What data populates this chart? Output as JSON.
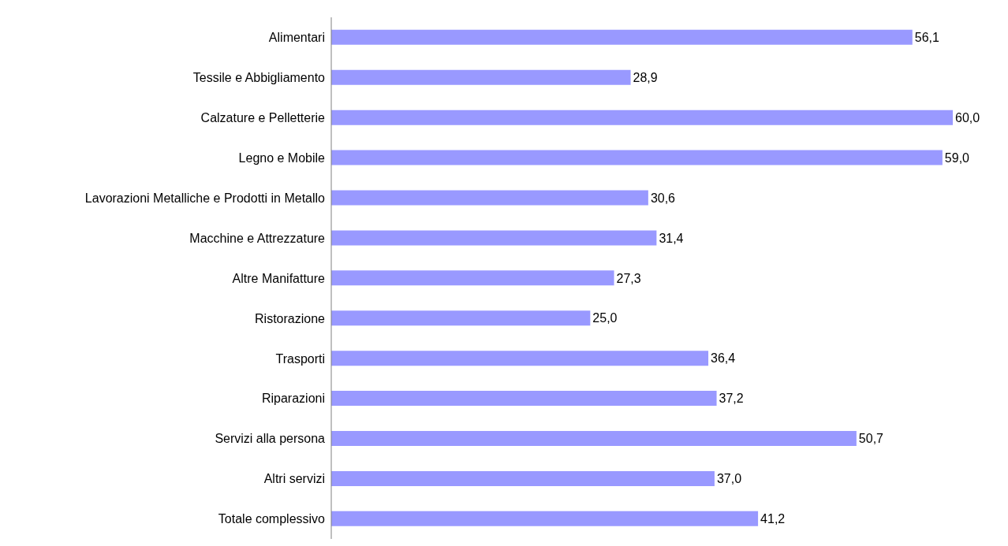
{
  "chart_data": {
    "type": "bar",
    "orientation": "horizontal",
    "categories": [
      "Alimentari",
      "Tessile e Abbigliamento",
      "Calzature e Pelletterie",
      "Legno e Mobile",
      "Lavorazioni Metalliche e Prodotti in Metallo",
      "Macchine e Attrezzature",
      "Altre Manifatture",
      "Ristorazione",
      "Trasporti",
      "Riparazioni",
      "Servizi alla persona",
      "Altri servizi",
      "Totale complessivo"
    ],
    "values": [
      56.1,
      28.9,
      60.0,
      59.0,
      30.6,
      31.4,
      27.3,
      25.0,
      36.4,
      37.2,
      50.7,
      37.0,
      41.2
    ],
    "value_labels": [
      "56,1",
      "28,9",
      "60,0",
      "59,0",
      "30,6",
      "31,4",
      "27,3",
      "25,0",
      "36,4",
      "37,2",
      "50,7",
      "37,0",
      "41,2"
    ],
    "color": "#9999ff"
  }
}
